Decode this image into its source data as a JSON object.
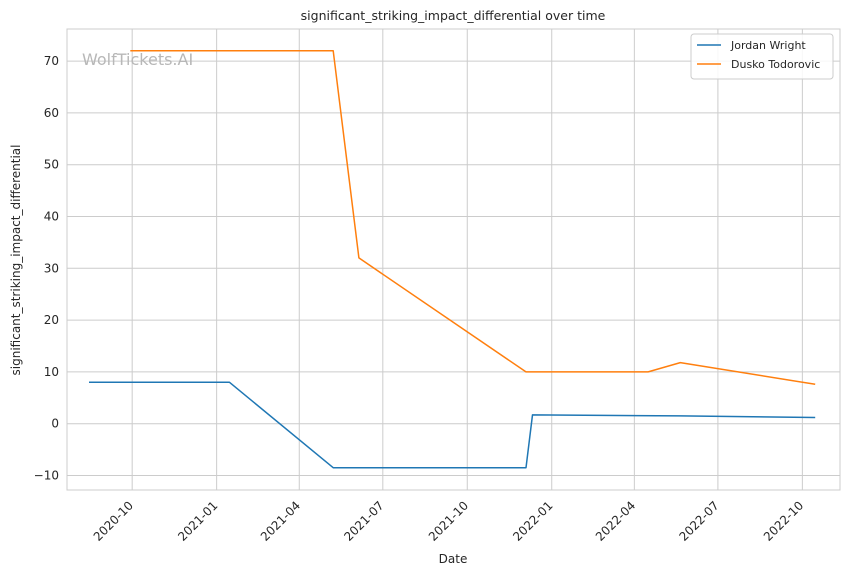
{
  "chart_data": {
    "type": "line",
    "title": "significant_striking_impact_differential over time",
    "xlabel": "Date",
    "ylabel": "significant_striking_impact_differential",
    "watermark": "WolfTickets.AI",
    "x_ticks": [
      "2020-10",
      "2021-01",
      "2021-04",
      "2021-07",
      "2021-10",
      "2022-01",
      "2022-04",
      "2022-07",
      "2022-10"
    ],
    "y_ticks": [
      -10,
      0,
      10,
      20,
      30,
      40,
      50,
      60,
      70
    ],
    "xlim": [
      "2020-07-22",
      "2022-11-11"
    ],
    "ylim": [
      -12.8,
      76.2
    ],
    "grid": true,
    "legend_position": "top-right",
    "series": [
      {
        "name": "Jordan Wright",
        "color": "#1f77b4",
        "points": [
          {
            "x": "2020-08-15",
            "y": 8
          },
          {
            "x": "2021-01-15",
            "y": 8
          },
          {
            "x": "2021-05-08",
            "y": -8.5
          },
          {
            "x": "2021-12-04",
            "y": -8.5
          },
          {
            "x": "2021-12-11",
            "y": 1.7
          },
          {
            "x": "2022-05-21",
            "y": 1.5
          },
          {
            "x": "2022-10-15",
            "y": 1.2
          }
        ]
      },
      {
        "name": "Dusko Todorovic",
        "color": "#ff7f0e",
        "points": [
          {
            "x": "2020-09-29",
            "y": 72
          },
          {
            "x": "2021-05-08",
            "y": 72
          },
          {
            "x": "2021-06-05",
            "y": 32
          },
          {
            "x": "2021-12-04",
            "y": 10
          },
          {
            "x": "2022-04-16",
            "y": 10
          },
          {
            "x": "2022-05-21",
            "y": 11.8
          },
          {
            "x": "2022-10-15",
            "y": 7.6
          }
        ]
      }
    ]
  }
}
